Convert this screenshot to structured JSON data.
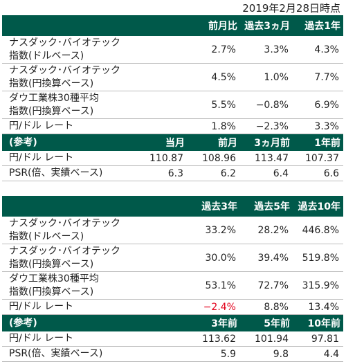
{
  "as_of": "2019年2月28日時点",
  "table1": {
    "headers": [
      "",
      "前月比",
      "過去3ヵ月",
      "過去1年"
    ],
    "rows": [
      {
        "label1": "ナスダック･バイオテック",
        "label2": "指数(ドルベース)",
        "values": [
          "2.7%",
          "3.3%",
          "4.3%"
        ]
      },
      {
        "label1": "ナスダック･バイオテック",
        "label2": "指数(円換算ベース)",
        "values": [
          "4.5%",
          "1.0%",
          "7.7%"
        ]
      },
      {
        "label1": "ダウ工業株30種平均",
        "label2": "指数(円換算ベース)",
        "values": [
          "5.5%",
          "−0.8%",
          "6.9%"
        ]
      },
      {
        "label1": "円/ドル レート",
        "values": [
          "1.8%",
          "−2.3%",
          "3.3%"
        ]
      }
    ],
    "ref_headers": [
      "(参考)",
      "当月",
      "前月",
      "3ヵ月前",
      "1年前"
    ],
    "ref_rows": [
      {
        "label": "円/ドル レート",
        "values": [
          "110.87",
          "108.96",
          "113.47",
          "107.37"
        ]
      },
      {
        "label": "PSR(倍、実績ベース)",
        "values": [
          "6.3",
          "6.2",
          "6.4",
          "6.6"
        ]
      }
    ]
  },
  "table2": {
    "headers": [
      "",
      "過去3年",
      "過去5年",
      "過去10年"
    ],
    "rows": [
      {
        "label1": "ナスダック･バイオテック",
        "label2": "指数(ドルベース)",
        "values": [
          "33.2%",
          "28.2%",
          "446.8%"
        ]
      },
      {
        "label1": "ナスダック･バイオテック",
        "label2": "指数(円換算ベース)",
        "values": [
          "30.0%",
          "39.4%",
          "519.8%"
        ]
      },
      {
        "label1": "ダウ工業株30種平均",
        "label2": "指数(円換算ベース)",
        "values": [
          "53.1%",
          "72.7%",
          "315.9%"
        ]
      },
      {
        "label1": "円/ドル レート",
        "values": [
          "−2.4%",
          "8.8%",
          "13.4%"
        ]
      }
    ],
    "ref_headers": [
      "(参考)",
      "",
      "3年前",
      "5年前",
      "10年前"
    ],
    "ref_rows": [
      {
        "label": "円/ドル レート",
        "values": [
          "",
          "113.62",
          "101.94",
          "97.81"
        ]
      },
      {
        "label": "PSR(倍、実績ベース)",
        "values": [
          "",
          "5.9",
          "9.8",
          "4.4"
        ]
      }
    ]
  },
  "colors": {
    "header_bg": "#00594a",
    "negative_highlight": "#e3001b"
  }
}
